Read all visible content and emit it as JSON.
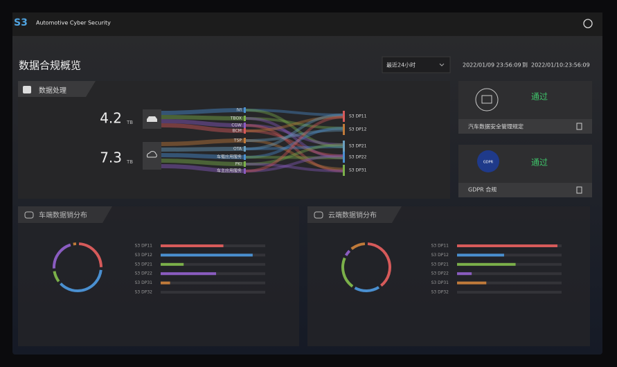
{
  "header": {
    "logo": "S3",
    "product": "Automotive Cyber Security"
  },
  "overview": {
    "title": "数据合规概览",
    "range_select": "最近24小时",
    "date_from": "2022/01/09 23:56:09",
    "date_sep": "到",
    "date_to": "2022/01/10:23:56:09"
  },
  "processing": {
    "title": "数据处理",
    "sources": [
      {
        "value": 4.2,
        "unit": "TB"
      },
      {
        "value": 7.3,
        "unit": "TB"
      }
    ],
    "nodes": [
      "IVI",
      "TBOX",
      "CGW",
      "BCM",
      "TSP",
      "OTA",
      "车载应用服务",
      "PKI",
      "车主应用服务"
    ],
    "targets": [
      "S3 DP11",
      "S3 DP12",
      "S3 DP21",
      "S3 DP22",
      "S3 DP31"
    ]
  },
  "compliance": [
    {
      "status": "通过",
      "name": "汽车数据安全管理规定"
    },
    {
      "badge": "GDPR",
      "status": "通过",
      "name": "GDPR 合规"
    }
  ],
  "distributions": [
    {
      "title": "车端数据销分布",
      "type": "bar",
      "categories": [
        "S3 DP11",
        "S3 DP12",
        "S3 DP21",
        "S3 DP22",
        "S3 DP31",
        "S3 DP32"
      ],
      "values": [
        60,
        88,
        22,
        53,
        9,
        0
      ],
      "colors": [
        "#d65a5a",
        "#4a8fd0",
        "#7bb04a",
        "#8a5cc0",
        "#c07a3a",
        "#666666"
      ],
      "xlim": [
        0,
        100
      ]
    },
    {
      "title": "云端数据销分布",
      "type": "bar",
      "categories": [
        "S3 DP11",
        "S3 DP12",
        "S3 DP21",
        "S3 DP22",
        "S3 DP31",
        "S3 DP32"
      ],
      "values": [
        96,
        45,
        56,
        14,
        28,
        0
      ],
      "colors": [
        "#d65a5a",
        "#4a8fd0",
        "#7bb04a",
        "#8a5cc0",
        "#c07a3a",
        "#666666"
      ],
      "xlim": [
        0,
        100
      ]
    }
  ]
}
